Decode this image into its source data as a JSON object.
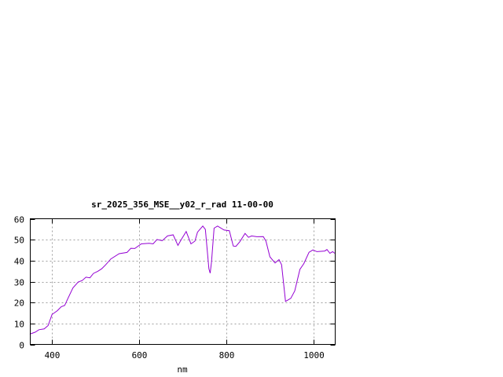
{
  "chart_data": {
    "type": "line",
    "title": "sr_2025_356_MSE__y02_r_rad 11-00-00",
    "xlabel": "nm",
    "ylabel": "",
    "xlim": [
      350,
      1050
    ],
    "ylim": [
      0,
      60
    ],
    "xticks": [
      400,
      600,
      800,
      1000
    ],
    "yticks": [
      0,
      10,
      20,
      30,
      40,
      50,
      60
    ],
    "grid": true,
    "legend": "none",
    "line_color": "#9400d3",
    "series": [
      {
        "x": [
          349,
          361,
          370,
          382,
          391,
          400,
          412,
          421,
          429,
          436,
          448,
          460,
          469,
          478,
          487,
          495,
          505,
          514,
          523,
          535,
          554,
          572,
          581,
          590,
          605,
          623,
          632,
          641,
          653,
          665,
          678,
          689,
          698,
          708,
          719,
          728,
          734,
          746,
          752,
          760,
          763,
          766,
          772,
          780,
          795,
          807,
          816,
          822,
          831,
          843,
          851,
          858,
          870,
          885,
          891,
          900,
          912,
          921,
          927,
          936,
          948,
          957,
          969,
          978,
          990,
          999,
          1008,
          1026,
          1031,
          1038,
          1044,
          1049
        ],
        "y": [
          4.9,
          5.8,
          7.0,
          7.4,
          9.0,
          14.3,
          16.1,
          18.0,
          18.6,
          21.8,
          27.0,
          29.8,
          30.5,
          32.1,
          31.8,
          33.9,
          34.9,
          36.1,
          38.0,
          40.8,
          43.3,
          43.9,
          45.9,
          45.8,
          48.0,
          48.3,
          48.0,
          50.1,
          49.5,
          51.8,
          52.3,
          47.3,
          50.5,
          53.9,
          48.0,
          49.3,
          53.6,
          56.5,
          54.9,
          36.1,
          34.0,
          39.3,
          55.5,
          56.5,
          54.6,
          54.3,
          47.0,
          46.8,
          49.0,
          53.0,
          51.1,
          51.8,
          51.4,
          51.5,
          49.3,
          41.8,
          38.9,
          40.5,
          38.0,
          20.5,
          22.0,
          25.5,
          35.8,
          38.6,
          44.0,
          45.1,
          44.3,
          44.6,
          45.3,
          43.5,
          44.3,
          43.5
        ]
      }
    ]
  }
}
